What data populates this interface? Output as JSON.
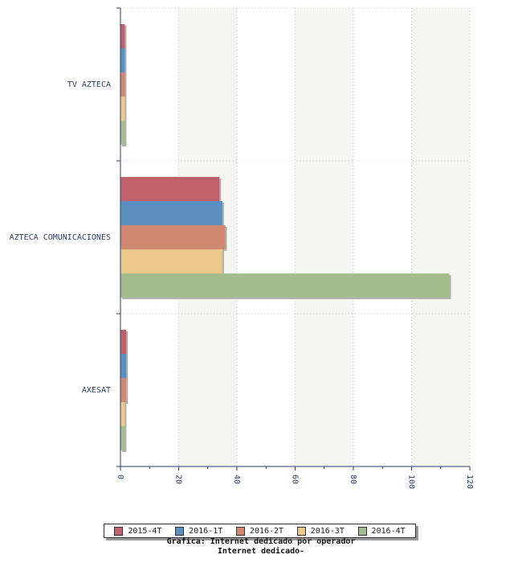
{
  "chart_data": {
    "type": "bar",
    "orientation": "horizontal",
    "categories": [
      "TV AZTECA",
      "AZTECA COMUNICACIONES",
      "AXESAT"
    ],
    "series": [
      {
        "name": "2015-4T",
        "color": "#c0606a",
        "values": [
          1.5,
          34,
          2
        ]
      },
      {
        "name": "2016-1T",
        "color": "#5b8fc0",
        "values": [
          1.5,
          35,
          2
        ]
      },
      {
        "name": "2016-2T",
        "color": "#d08870",
        "values": [
          1.5,
          36,
          2
        ]
      },
      {
        "name": "2016-3T",
        "color": "#ecc98c",
        "values": [
          1.5,
          35,
          1.5
        ]
      },
      {
        "name": "2016-4T",
        "color": "#a3bd8c",
        "values": [
          1.5,
          113,
          1.5
        ]
      }
    ],
    "xlim": [
      0,
      120
    ],
    "x_ticks": [
      "0",
      "20",
      "40",
      "60",
      "80",
      "100",
      "120"
    ],
    "grid": true,
    "legend_position": "bottom",
    "title": "Grafica: Internet dedicado por operador",
    "subtitle": "Internet dedicado-"
  }
}
